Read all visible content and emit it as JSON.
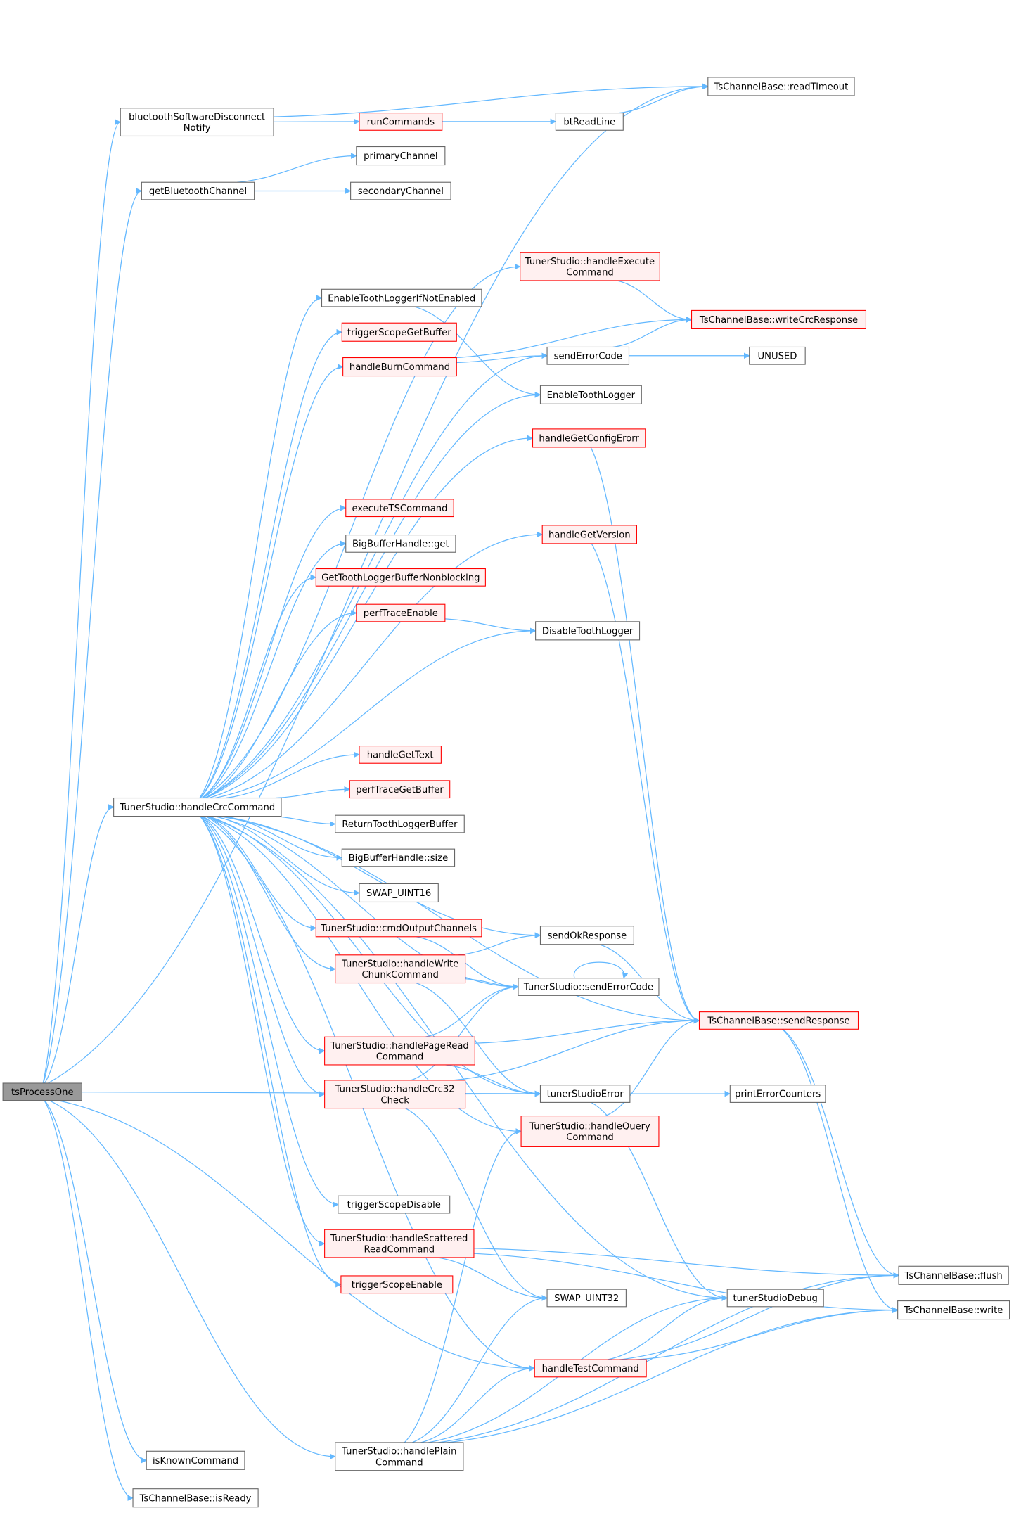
{
  "colors": {
    "edge": "#63b8ff",
    "node_border": "#666666",
    "node_fill": "#ffffff",
    "highlight_border": "#ff0000",
    "highlight_fill": "#fff0f0",
    "root_fill": "#999999"
  },
  "nodes": {
    "tsProcessOne": {
      "label": [
        "tsProcessOne"
      ],
      "style": "root"
    },
    "readTimeout": {
      "label": [
        "TsChannelBase::readTimeout"
      ],
      "style": "normal"
    },
    "btDisconnect": {
      "label": [
        "bluetoothSoftwareDisconnect",
        "Notify"
      ],
      "style": "normal"
    },
    "runCommands": {
      "label": [
        "runCommands"
      ],
      "style": "red"
    },
    "btReadLine": {
      "label": [
        "btReadLine"
      ],
      "style": "normal"
    },
    "primaryChannel": {
      "label": [
        "primaryChannel"
      ],
      "style": "normal"
    },
    "secondaryChannel": {
      "label": [
        "secondaryChannel"
      ],
      "style": "normal"
    },
    "getBluetoothChannel": {
      "label": [
        "getBluetoothChannel"
      ],
      "style": "normal"
    },
    "handleExecuteCommand": {
      "label": [
        "TunerStudio::handleExecute",
        "Command"
      ],
      "style": "red"
    },
    "enableToothLoggerIfNot": {
      "label": [
        "EnableToothLoggerIfNotEnabled"
      ],
      "style": "normal"
    },
    "writeCrcResponse": {
      "label": [
        "TsChannelBase::writeCrcResponse"
      ],
      "style": "red"
    },
    "triggerScopeGetBuffer": {
      "label": [
        "triggerScopeGetBuffer"
      ],
      "style": "red"
    },
    "handleBurnCommand": {
      "label": [
        "handleBurnCommand"
      ],
      "style": "red"
    },
    "sendErrorCode": {
      "label": [
        "sendErrorCode"
      ],
      "style": "normal"
    },
    "unused": {
      "label": [
        "UNUSED"
      ],
      "style": "normal"
    },
    "enableToothLogger": {
      "label": [
        "EnableToothLogger"
      ],
      "style": "normal"
    },
    "handleGetConfigErorr": {
      "label": [
        "handleGetConfigErorr"
      ],
      "style": "red"
    },
    "executeTSCommand": {
      "label": [
        "executeTSCommand"
      ],
      "style": "red"
    },
    "handleGetVersion": {
      "label": [
        "handleGetVersion"
      ],
      "style": "red"
    },
    "bigBufferGet": {
      "label": [
        "BigBufferHandle::get"
      ],
      "style": "normal"
    },
    "getToothLoggerBuffer": {
      "label": [
        "GetToothLoggerBufferNonblocking"
      ],
      "style": "red"
    },
    "perfTraceEnable": {
      "label": [
        "perfTraceEnable"
      ],
      "style": "red"
    },
    "disableToothLogger": {
      "label": [
        "DisableToothLogger"
      ],
      "style": "normal"
    },
    "handleGetText": {
      "label": [
        "handleGetText"
      ],
      "style": "red"
    },
    "perfTraceGetBuffer": {
      "label": [
        "perfTraceGetBuffer"
      ],
      "style": "red"
    },
    "handleCrcCommand": {
      "label": [
        "TunerStudio::handleCrcCommand"
      ],
      "style": "normal"
    },
    "returnToothLoggerBuffer": {
      "label": [
        "ReturnToothLoggerBuffer"
      ],
      "style": "normal"
    },
    "bigBufferSize": {
      "label": [
        "BigBufferHandle::size"
      ],
      "style": "normal"
    },
    "swapUint16": {
      "label": [
        "SWAP_UINT16"
      ],
      "style": "normal"
    },
    "cmdOutputChannels": {
      "label": [
        "TunerStudio::cmdOutputChannels"
      ],
      "style": "red"
    },
    "sendOkResponse": {
      "label": [
        "sendOkResponse"
      ],
      "style": "normal"
    },
    "handleWriteChunk": {
      "label": [
        "TunerStudio::handleWrite",
        "ChunkCommand"
      ],
      "style": "red"
    },
    "tsSendErrorCode": {
      "label": [
        "TunerStudio::sendErrorCode"
      ],
      "style": "normal"
    },
    "sendResponse": {
      "label": [
        "TsChannelBase::sendResponse"
      ],
      "style": "red"
    },
    "handlePageRead": {
      "label": [
        "TunerStudio::handlePageRead",
        "Command"
      ],
      "style": "red"
    },
    "handleCrc32": {
      "label": [
        "TunerStudio::handleCrc32",
        "Check"
      ],
      "style": "red"
    },
    "tunerStudioError": {
      "label": [
        "tunerStudioError"
      ],
      "style": "normal"
    },
    "printErrorCounters": {
      "label": [
        "printErrorCounters"
      ],
      "style": "normal"
    },
    "handleQuery": {
      "label": [
        "TunerStudio::handleQuery",
        "Command"
      ],
      "style": "red"
    },
    "triggerScopeDisable": {
      "label": [
        "triggerScopeDisable"
      ],
      "style": "normal"
    },
    "handleScattered": {
      "label": [
        "TunerStudio::handleScattered",
        "ReadCommand"
      ],
      "style": "red"
    },
    "triggerScopeEnable": {
      "label": [
        "triggerScopeEnable"
      ],
      "style": "red"
    },
    "swapUint32": {
      "label": [
        "SWAP_UINT32"
      ],
      "style": "normal"
    },
    "tunerStudioDebug": {
      "label": [
        "tunerStudioDebug"
      ],
      "style": "normal"
    },
    "flush": {
      "label": [
        "TsChannelBase::flush"
      ],
      "style": "normal"
    },
    "write": {
      "label": [
        "TsChannelBase::write"
      ],
      "style": "normal"
    },
    "handleTestCommand": {
      "label": [
        "handleTestCommand"
      ],
      "style": "red"
    },
    "isKnownCommand": {
      "label": [
        "isKnownCommand"
      ],
      "style": "normal"
    },
    "handlePlain": {
      "label": [
        "TunerStudio::handlePlain",
        "Command"
      ],
      "style": "normal"
    },
    "isReady": {
      "label": [
        "TsChannelBase::isReady"
      ],
      "style": "normal"
    }
  },
  "edges": [
    [
      "tsProcessOne",
      "readTimeout"
    ],
    [
      "tsProcessOne",
      "btDisconnect"
    ],
    [
      "tsProcessOne",
      "getBluetoothChannel"
    ],
    [
      "tsProcessOne",
      "handleCrcCommand"
    ],
    [
      "tsProcessOne",
      "tunerStudioError"
    ],
    [
      "tsProcessOne",
      "handleTestCommand"
    ],
    [
      "tsProcessOne",
      "isKnownCommand"
    ],
    [
      "tsProcessOne",
      "handlePlain"
    ],
    [
      "tsProcessOne",
      "isReady"
    ],
    [
      "btDisconnect",
      "readTimeout"
    ],
    [
      "btDisconnect",
      "runCommands"
    ],
    [
      "runCommands",
      "btReadLine"
    ],
    [
      "btReadLine",
      "readTimeout"
    ],
    [
      "getBluetoothChannel",
      "primaryChannel"
    ],
    [
      "getBluetoothChannel",
      "secondaryChannel"
    ],
    [
      "handleExecuteCommand",
      "writeCrcResponse"
    ],
    [
      "enableToothLoggerIfNot",
      "enableToothLogger"
    ],
    [
      "handleBurnCommand",
      "writeCrcResponse"
    ],
    [
      "handleBurnCommand",
      "sendErrorCode"
    ],
    [
      "sendErrorCode",
      "writeCrcResponse"
    ],
    [
      "sendErrorCode",
      "unused"
    ],
    [
      "handleGetConfigErorr",
      "sendResponse"
    ],
    [
      "handleGetVersion",
      "sendResponse"
    ],
    [
      "perfTraceEnable",
      "disableToothLogger"
    ],
    [
      "handleCrcCommand",
      "handleExecuteCommand"
    ],
    [
      "handleCrcCommand",
      "sendErrorCode"
    ],
    [
      "handleCrcCommand",
      "enableToothLoggerIfNot"
    ],
    [
      "handleCrcCommand",
      "triggerScopeGetBuffer"
    ],
    [
      "handleCrcCommand",
      "handleBurnCommand"
    ],
    [
      "handleCrcCommand",
      "enableToothLogger"
    ],
    [
      "handleCrcCommand",
      "handleGetConfigErorr"
    ],
    [
      "handleCrcCommand",
      "executeTSCommand"
    ],
    [
      "handleCrcCommand",
      "handleGetVersion"
    ],
    [
      "handleCrcCommand",
      "bigBufferGet"
    ],
    [
      "handleCrcCommand",
      "getToothLoggerBuffer"
    ],
    [
      "handleCrcCommand",
      "perfTraceEnable"
    ],
    [
      "handleCrcCommand",
      "disableToothLogger"
    ],
    [
      "handleCrcCommand",
      "sendResponse"
    ],
    [
      "handleCrcCommand",
      "sendOkResponse"
    ],
    [
      "handleCrcCommand",
      "handleGetText"
    ],
    [
      "handleCrcCommand",
      "perfTraceGetBuffer"
    ],
    [
      "handleCrcCommand",
      "returnToothLoggerBuffer"
    ],
    [
      "handleCrcCommand",
      "bigBufferSize"
    ],
    [
      "handleCrcCommand",
      "swapUint16"
    ],
    [
      "handleCrcCommand",
      "cmdOutputChannels"
    ],
    [
      "handleCrcCommand",
      "handleWriteChunk"
    ],
    [
      "handleCrcCommand",
      "tsSendErrorCode"
    ],
    [
      "handleCrcCommand",
      "handlePageRead"
    ],
    [
      "handleCrcCommand",
      "handleCrc32"
    ],
    [
      "handleCrcCommand",
      "handleQuery"
    ],
    [
      "handleCrcCommand",
      "tunerStudioDebug"
    ],
    [
      "handleCrcCommand",
      "triggerScopeDisable"
    ],
    [
      "handleCrcCommand",
      "handleScattered"
    ],
    [
      "handleCrcCommand",
      "triggerScopeEnable"
    ],
    [
      "handleCrcCommand",
      "tunerStudioError"
    ],
    [
      "handleCrcCommand",
      "handleTestCommand"
    ],
    [
      "cmdOutputChannels",
      "tsSendErrorCode"
    ],
    [
      "sendOkResponse",
      "sendResponse"
    ],
    [
      "handleWriteChunk",
      "sendOkResponse"
    ],
    [
      "handleWriteChunk",
      "tsSendErrorCode"
    ],
    [
      "handleWriteChunk",
      "tunerStudioError"
    ],
    [
      "tsSendErrorCode",
      "tsSendErrorCode"
    ],
    [
      "handlePageRead",
      "sendResponse"
    ],
    [
      "handlePageRead",
      "tsSendErrorCode"
    ],
    [
      "handlePageRead",
      "tunerStudioError"
    ],
    [
      "handleCrc32",
      "tunerStudioError"
    ],
    [
      "handleCrc32",
      "sendResponse"
    ],
    [
      "handleCrc32",
      "tsSendErrorCode"
    ],
    [
      "handleCrc32",
      "swapUint32"
    ],
    [
      "tunerStudioError",
      "printErrorCounters"
    ],
    [
      "tunerStudioError",
      "tunerStudioDebug"
    ],
    [
      "handleQuery",
      "sendResponse"
    ],
    [
      "sendResponse",
      "flush"
    ],
    [
      "sendResponse",
      "write"
    ],
    [
      "handleScattered",
      "flush"
    ],
    [
      "handleScattered",
      "write"
    ],
    [
      "handleScattered",
      "swapUint32"
    ],
    [
      "handleTestCommand",
      "tunerStudioDebug"
    ],
    [
      "handleTestCommand",
      "flush"
    ],
    [
      "handleTestCommand",
      "write"
    ],
    [
      "handlePlain",
      "handleQuery"
    ],
    [
      "handlePlain",
      "swapUint32"
    ],
    [
      "handlePlain",
      "handleTestCommand"
    ],
    [
      "handlePlain",
      "tunerStudioDebug"
    ],
    [
      "handlePlain",
      "flush"
    ],
    [
      "handlePlain",
      "write"
    ]
  ]
}
